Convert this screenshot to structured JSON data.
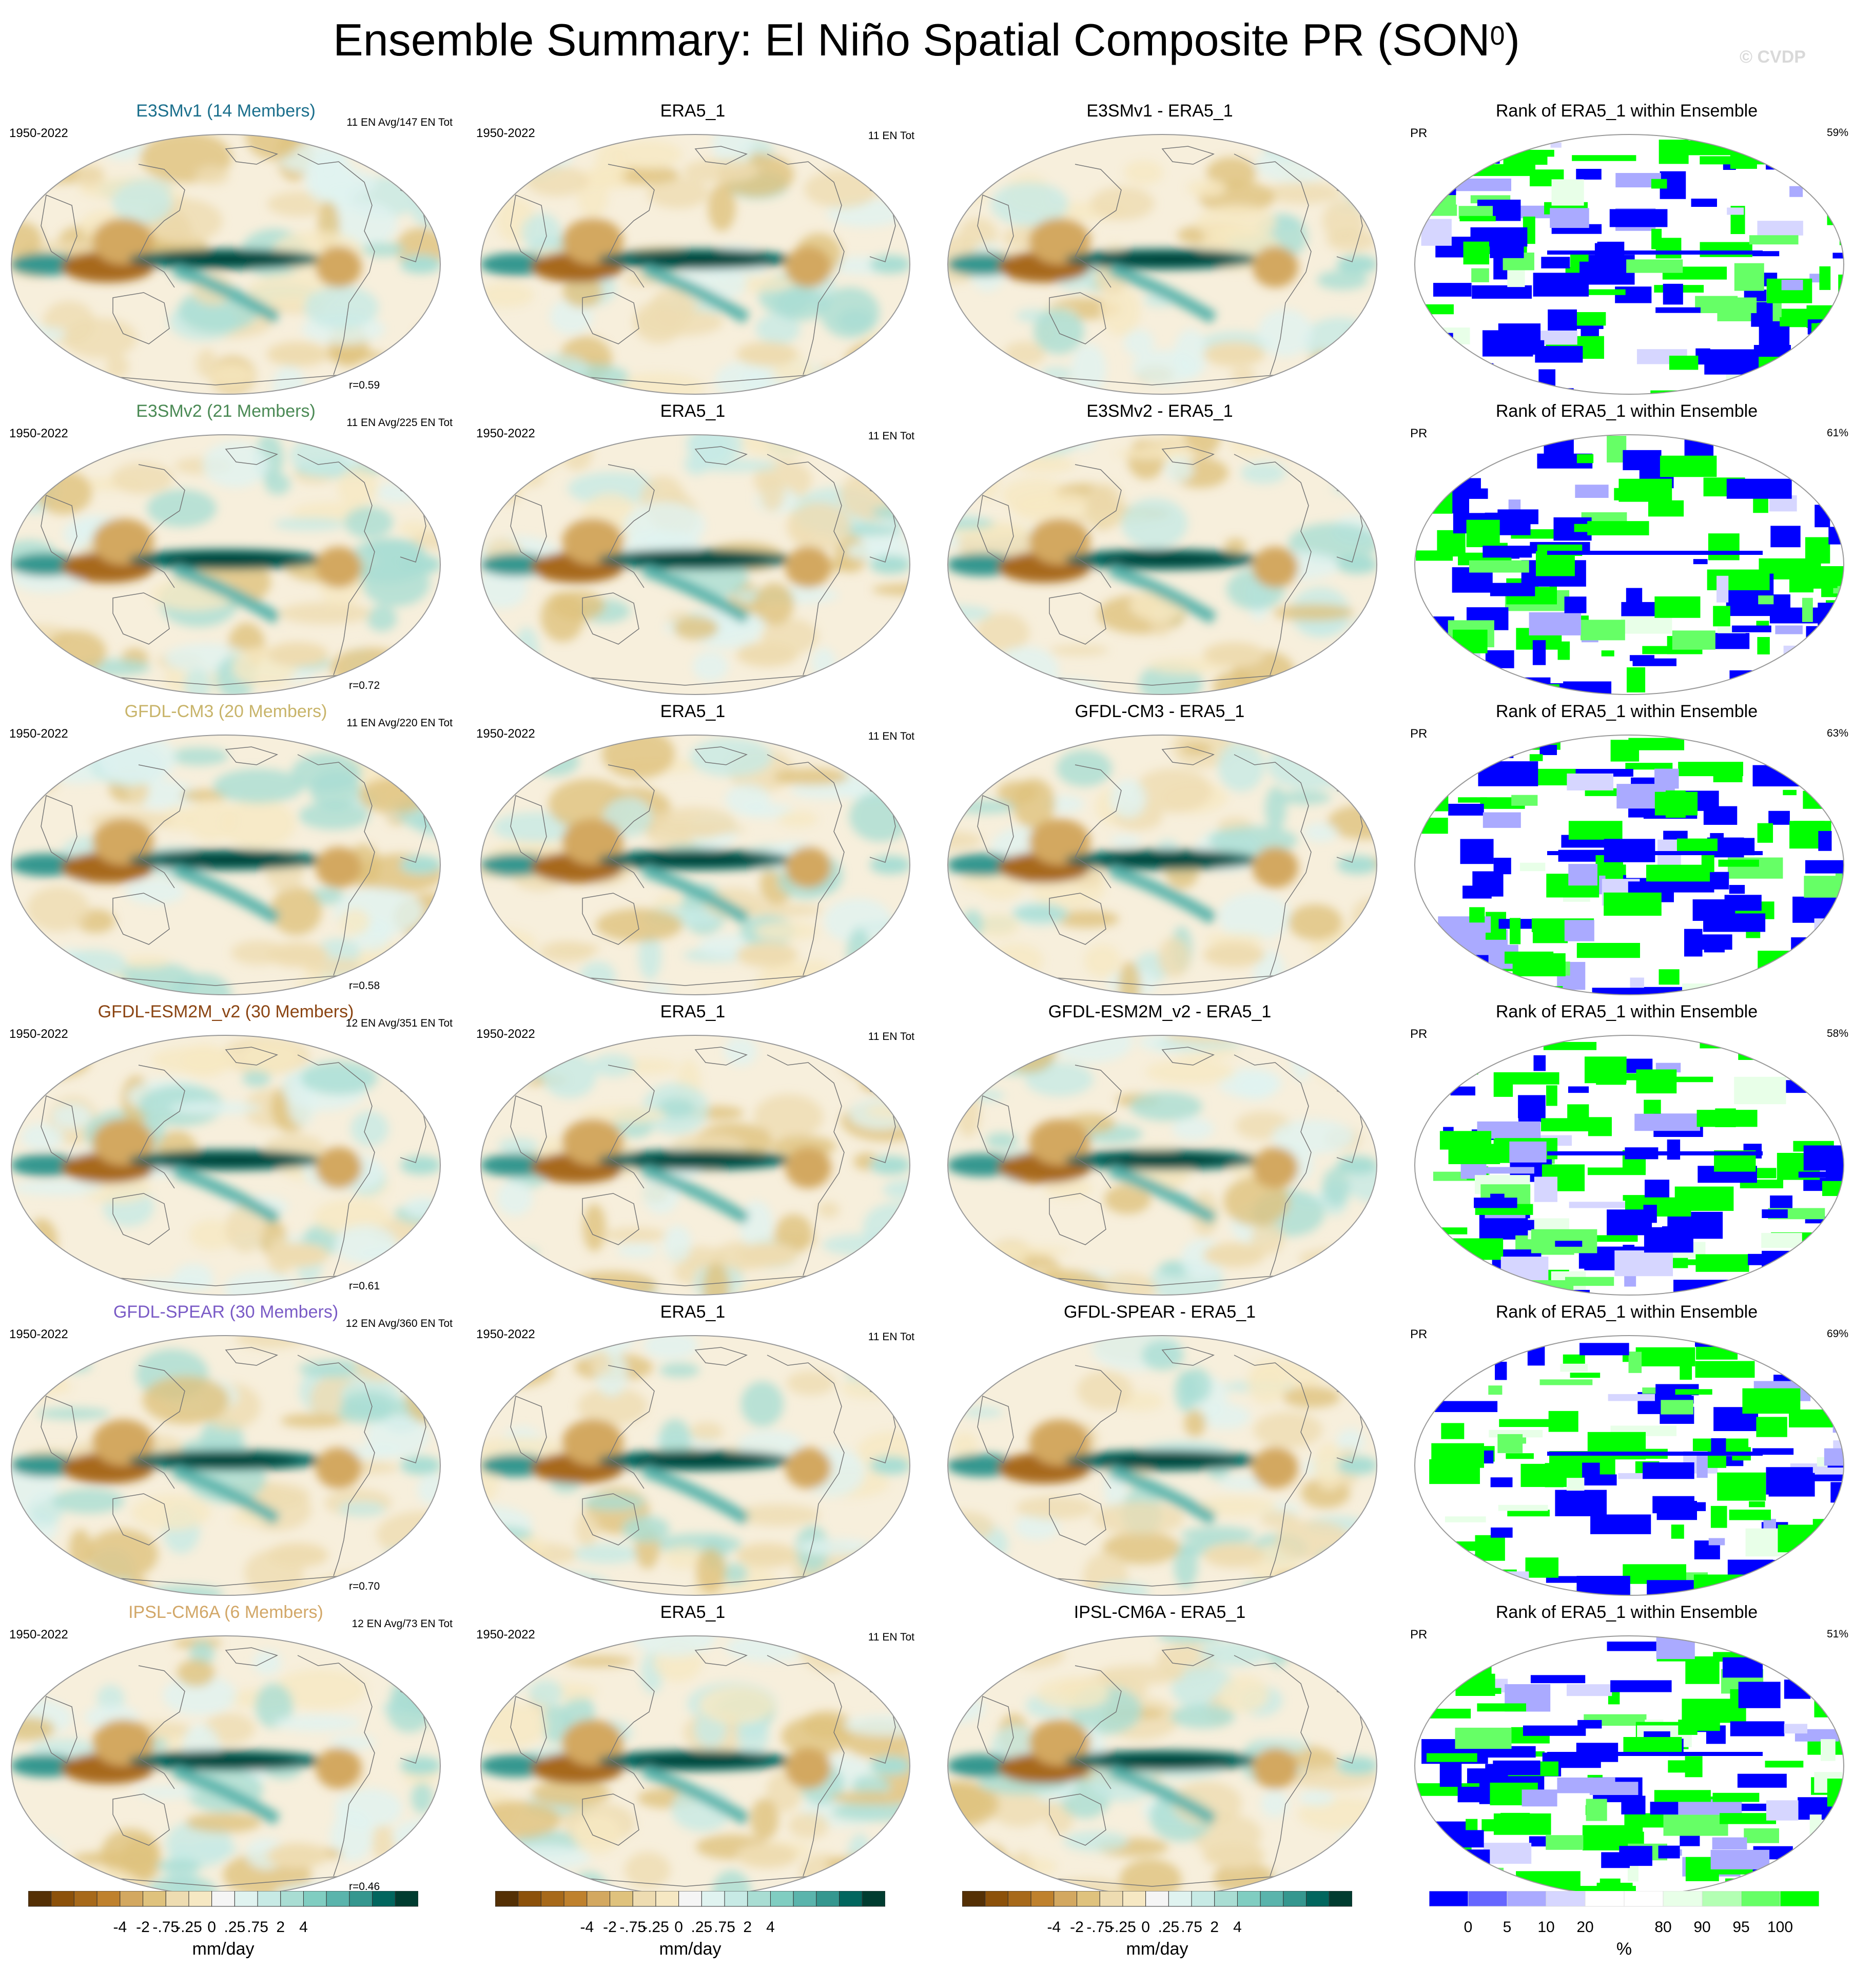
{
  "figure": {
    "title": "Ensemble Summary: El Niño Spatial Composite PR (SON",
    "title_sup": "0",
    "title_close": ")",
    "watermark": "© CVDP"
  },
  "colors": {
    "model_title": {
      "E3SMv1": "#1b6f8c",
      "E3SMv2": "#4b8a55",
      "GFDL-CM3": "#c8b46a",
      "GFDL-ESM2M_v2": "#8b4513",
      "GFDL-SPEAR": "#7a5bc6",
      "IPSL-CM6A": "#d2a768"
    },
    "diverging_scale": [
      "#543005",
      "#8c510a",
      "#a7691a",
      "#bf812d",
      "#d3a860",
      "#dfc27d",
      "#eedcb1",
      "#f6e8c3",
      "#f5f5f5",
      "#e0f3f0",
      "#c7eae5",
      "#a9ddd3",
      "#80cdc1",
      "#5ab4ac",
      "#35978f",
      "#01665e",
      "#003c30"
    ],
    "rank_scale": [
      "#0000ff",
      "#6666ff",
      "#aaaaff",
      "#d6d6ff",
      "#ffffff",
      "#ffffff",
      "#e8ffe8",
      "#b3ffb3",
      "#66ff66",
      "#00ff00"
    ]
  },
  "rows": [
    {
      "model": {
        "title": "E3SMv1 (14 Members)",
        "years": "1950-2022",
        "events": "11 EN Avg/147 EN Tot",
        "corr": "r=0.59"
      },
      "obs": {
        "title": "ERA5_1",
        "years": "1950-2022",
        "events": "11 EN Tot"
      },
      "diff": {
        "title": "E3SMv1 - ERA5_1"
      },
      "rank": {
        "title": "Rank of ERA5_1 within Ensemble",
        "var": "PR",
        "pct": "59%"
      }
    },
    {
      "model": {
        "title": "E3SMv2 (21 Members)",
        "years": "1950-2022",
        "events": "11 EN Avg/225 EN Tot",
        "corr": "r=0.72"
      },
      "obs": {
        "title": "ERA5_1",
        "years": "1950-2022",
        "events": "11 EN Tot"
      },
      "diff": {
        "title": "E3SMv2 - ERA5_1"
      },
      "rank": {
        "title": "Rank of ERA5_1 within Ensemble",
        "var": "PR",
        "pct": "61%"
      }
    },
    {
      "model": {
        "title": "GFDL-CM3 (20 Members)",
        "years": "1950-2022",
        "events": "11 EN Avg/220 EN Tot",
        "corr": "r=0.58"
      },
      "obs": {
        "title": "ERA5_1",
        "years": "1950-2022",
        "events": "11 EN Tot"
      },
      "diff": {
        "title": "GFDL-CM3 - ERA5_1"
      },
      "rank": {
        "title": "Rank of ERA5_1 within Ensemble",
        "var": "PR",
        "pct": "63%"
      }
    },
    {
      "model": {
        "title": "GFDL-ESM2M_v2 (30 Members)",
        "years": "1950-2022",
        "events": "12 EN Avg/351 EN Tot",
        "corr": "r=0.61"
      },
      "obs": {
        "title": "ERA5_1",
        "years": "1950-2022",
        "events": "11 EN Tot"
      },
      "diff": {
        "title": "GFDL-ESM2M_v2 - ERA5_1"
      },
      "rank": {
        "title": "Rank of ERA5_1 within Ensemble",
        "var": "PR",
        "pct": "58%"
      }
    },
    {
      "model": {
        "title": "GFDL-SPEAR (30 Members)",
        "years": "1950-2022",
        "events": "12 EN Avg/360 EN Tot",
        "corr": "r=0.70"
      },
      "obs": {
        "title": "ERA5_1",
        "years": "1950-2022",
        "events": "11 EN Tot"
      },
      "diff": {
        "title": "GFDL-SPEAR - ERA5_1"
      },
      "rank": {
        "title": "Rank of ERA5_1 within Ensemble",
        "var": "PR",
        "pct": "69%"
      }
    },
    {
      "model": {
        "title": "IPSL-CM6A (6 Members)",
        "years": "1950-2022",
        "events": "12 EN Avg/73 EN Tot",
        "corr": "r=0.46"
      },
      "obs": {
        "title": "ERA5_1",
        "years": "1950-2022",
        "events": "11 EN Tot"
      },
      "diff": {
        "title": "IPSL-CM6A - ERA5_1"
      },
      "rank": {
        "title": "Rank of ERA5_1 within Ensemble",
        "var": "PR",
        "pct": "51%"
      }
    }
  ],
  "colorbars": {
    "diverging": {
      "labels": [
        "-4",
        "-2",
        "-.75",
        "-.25",
        "0",
        ".25",
        ".75",
        "2",
        "4"
      ],
      "unit": "mm/day"
    },
    "rank": {
      "labels": [
        "0",
        "5",
        "10",
        "20",
        "80",
        "90",
        "95",
        "100"
      ],
      "unit": "%"
    }
  },
  "chart_data": {
    "type": "heatmap",
    "title": "Ensemble Summary: El Niño Spatial Composite PR (SON0)",
    "layout": "6 rows x 4 columns of global map panels",
    "columns": [
      "model ensemble composite",
      "ERA5_1",
      "model - ERA5_1",
      "Rank of ERA5_1 within Ensemble"
    ],
    "rows": [
      {
        "model": "E3SMv1",
        "members": 14,
        "pattern_correlation": 0.59,
        "rank_pct": 59
      },
      {
        "model": "E3SMv2",
        "members": 21,
        "pattern_correlation": 0.72,
        "rank_pct": 61
      },
      {
        "model": "GFDL-CM3",
        "members": 20,
        "pattern_correlation": 0.58,
        "rank_pct": 63
      },
      {
        "model": "GFDL-ESM2M_v2",
        "members": 30,
        "pattern_correlation": 0.61,
        "rank_pct": 58
      },
      {
        "model": "GFDL-SPEAR",
        "members": 30,
        "pattern_correlation": 0.7,
        "rank_pct": 69
      },
      {
        "model": "IPSL-CM6A",
        "members": 6,
        "pattern_correlation": 0.46,
        "rank_pct": 51
      }
    ],
    "diverging_levels": [
      -4,
      -2,
      -0.75,
      -0.25,
      0,
      0.25,
      0.75,
      2,
      4
    ],
    "diverging_unit": "mm/day",
    "rank_levels": [
      0,
      5,
      10,
      20,
      80,
      90,
      95,
      100
    ],
    "rank_unit": "%"
  }
}
